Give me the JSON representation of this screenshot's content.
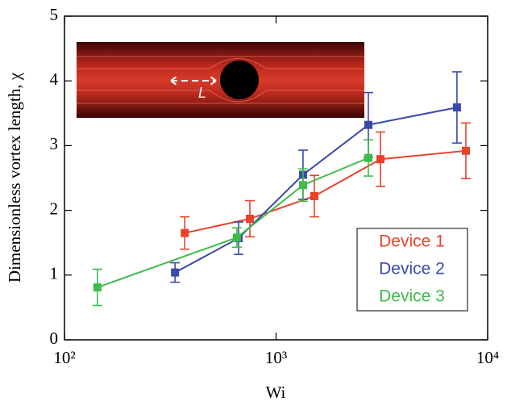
{
  "chart_data": {
    "type": "line",
    "xlabel": "Wi",
    "ylabel": "Dimensionless vortex length, χ",
    "inset_label": "L",
    "xscale": "log",
    "xlim": [
      100,
      10000
    ],
    "xticks": [
      {
        "value": 100,
        "label": "10²"
      },
      {
        "value": 1000,
        "label": "10³"
      },
      {
        "value": 10000,
        "label": "10⁴"
      }
    ],
    "ylim": [
      0,
      5
    ],
    "yticks": [
      0,
      1,
      2,
      3,
      4,
      5
    ],
    "series": [
      {
        "name": "Device 1",
        "color": "#e8432a",
        "x": [
          370,
          752,
          1517,
          3115,
          7890
        ],
        "values": [
          1.65,
          1.87,
          2.22,
          2.79,
          2.92
        ],
        "errors": [
          0.25,
          0.28,
          0.32,
          0.42,
          0.43
        ]
      },
      {
        "name": "Device 2",
        "color": "#3a4aa8",
        "x": [
          333,
          665,
          1341,
          2730,
          7160
        ],
        "values": [
          1.04,
          1.57,
          2.55,
          3.32,
          3.59
        ],
        "errors": [
          0.15,
          0.25,
          0.38,
          0.5,
          0.55
        ]
      },
      {
        "name": "Device 3",
        "color": "#3fbb4a",
        "x": [
          143,
          653,
          1341,
          2730
        ],
        "values": [
          0.81,
          1.58,
          2.39,
          2.81
        ],
        "errors": [
          0.28,
          0.15,
          0.25,
          0.28
        ]
      }
    ]
  }
}
